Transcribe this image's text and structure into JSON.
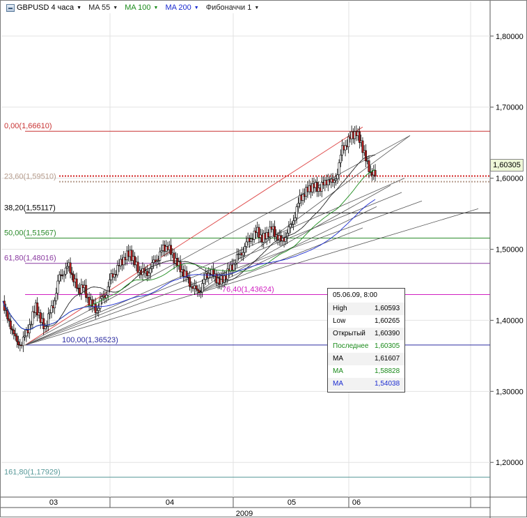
{
  "toolbar": {
    "symbol": "GBPUSD 4 часа",
    "ma1": "MA 55",
    "ma2": "MA 100",
    "ma3": "MA 200",
    "fib": "Фибоначчи 1"
  },
  "chart_data": {
    "type": "candlestick",
    "symbol": "GBPUSD",
    "timeframe": "4 часа",
    "y_axis": {
      "range": [
        1.16,
        1.84
      ],
      "ticks": [
        "1,80000",
        "1,70000",
        "1,60000",
        "1,50000",
        "1,40000",
        "1,30000",
        "1,20000"
      ],
      "tick_values": [
        1.8,
        1.7,
        1.6,
        1.5,
        1.4,
        1.3,
        1.2
      ]
    },
    "x_axis": {
      "month_labels": [
        "03",
        "04",
        "05",
        "06"
      ],
      "year_label": "2009"
    },
    "last_price": "1,60305",
    "fibonacci_levels": [
      {
        "label": "0,00(1,66610)",
        "price": 1.6661,
        "color": "#c83232"
      },
      {
        "label": "23,60(1,59510)",
        "price": 1.5951,
        "color": "#b49a8a"
      },
      {
        "label": "38,20(1,55117)",
        "price": 1.55117,
        "color": "#000000"
      },
      {
        "label": "50,00(1,51567)",
        "price": 1.51567,
        "color": "#2a8a2a"
      },
      {
        "label": "61,80(1,48016)",
        "price": 1.48016,
        "color": "#8a3aa0"
      },
      {
        "label": "76,40(1,43624)",
        "price": 1.43624,
        "color": "#d020c0"
      },
      {
        "label": "100,00(1,36523)",
        "price": 1.36523,
        "color": "#2a2aa0"
      },
      {
        "label": "161,80(1,17929)",
        "price": 1.17929,
        "color": "#5a9a9a"
      }
    ],
    "price_path": [
      1.427,
      1.4,
      1.39,
      1.365,
      1.37,
      1.38,
      1.4,
      1.42,
      1.4,
      1.39,
      1.41,
      1.43,
      1.46,
      1.47,
      1.475,
      1.46,
      1.44,
      1.45,
      1.43,
      1.42,
      1.415,
      1.43,
      1.44,
      1.46,
      1.47,
      1.48,
      1.49,
      1.495,
      1.48,
      1.47,
      1.465,
      1.47,
      1.48,
      1.49,
      1.5,
      1.505,
      1.49,
      1.48,
      1.47,
      1.46,
      1.45,
      1.44,
      1.445,
      1.46,
      1.47,
      1.46,
      1.455,
      1.46,
      1.47,
      1.48,
      1.49,
      1.5,
      1.51,
      1.52,
      1.525,
      1.515,
      1.52,
      1.53,
      1.52,
      1.51,
      1.52,
      1.53,
      1.55,
      1.57,
      1.58,
      1.585,
      1.59,
      1.585,
      1.59,
      1.6,
      1.59,
      1.61,
      1.64,
      1.65,
      1.66,
      1.664,
      1.65,
      1.625,
      1.61,
      1.603
    ],
    "info_box": {
      "datetime": "05.06.09, 8:00",
      "rows": [
        {
          "key": "High",
          "value": "1,60593",
          "color": "#000000"
        },
        {
          "key": "Low",
          "value": "1,60265",
          "color": "#000000"
        },
        {
          "key": "Открытый",
          "value": "1,60390",
          "color": "#000000"
        },
        {
          "key": "Последнее",
          "value": "1,60305",
          "color": "#1a8a1a"
        },
        {
          "key": "MA",
          "value": "1,61607",
          "color": "#000000"
        },
        {
          "key": "MA",
          "value": "1,58828",
          "color": "#1a8a1a"
        },
        {
          "key": "MA",
          "value": "1,54038",
          "color": "#1a2ad0"
        }
      ]
    }
  }
}
